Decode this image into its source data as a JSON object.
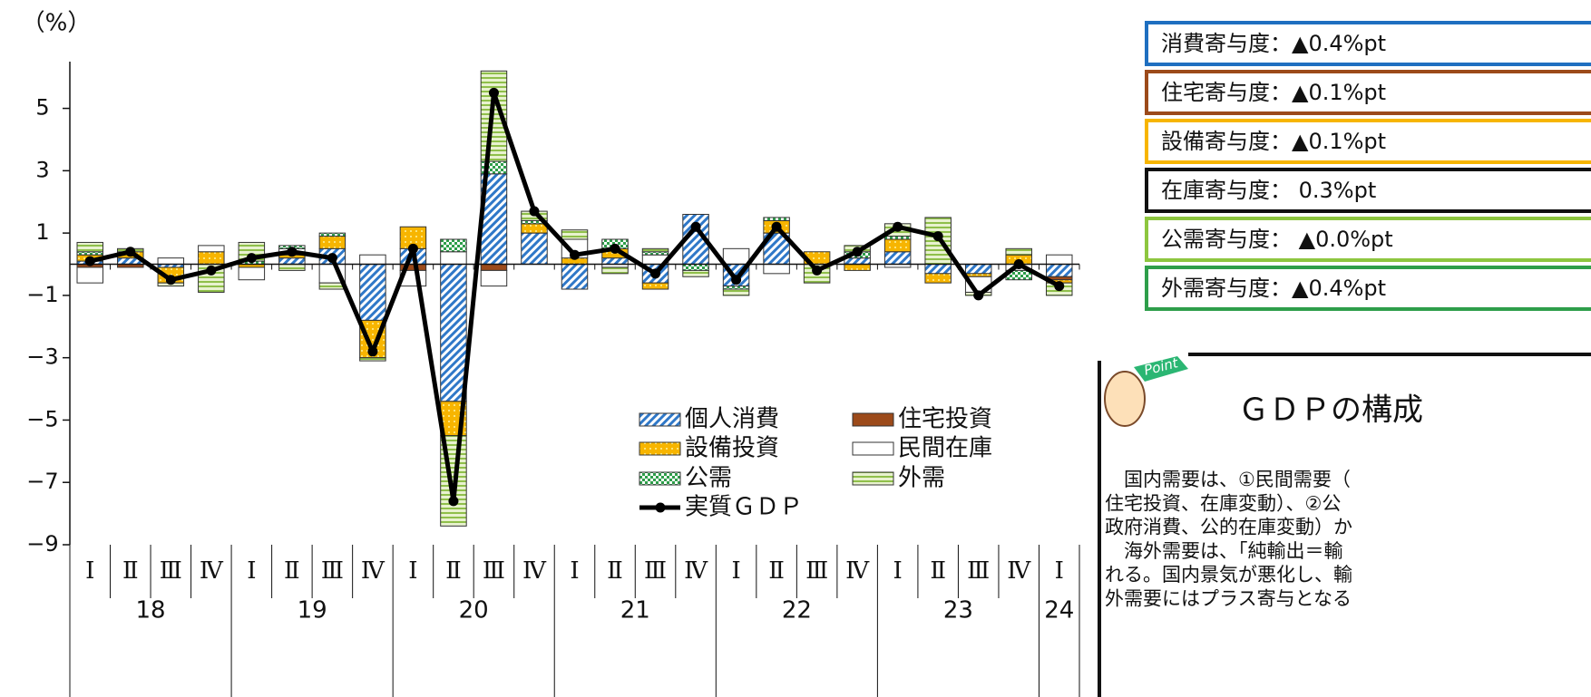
{
  "chart_data": {
    "type": "stacked-bar-line",
    "y_label": "（%）",
    "categories": [
      "Ⅰ",
      "Ⅱ",
      "Ⅲ",
      "Ⅳ",
      "Ⅰ",
      "Ⅱ",
      "Ⅲ",
      "Ⅳ",
      "Ⅰ",
      "Ⅱ",
      "Ⅲ",
      "Ⅳ",
      "Ⅰ",
      "Ⅱ",
      "Ⅲ",
      "Ⅳ",
      "Ⅰ",
      "Ⅱ",
      "Ⅲ",
      "Ⅳ",
      "Ⅰ",
      "Ⅱ",
      "Ⅲ",
      "Ⅳ",
      "Ⅰ"
    ],
    "years": [
      "18",
      "19",
      "20",
      "21",
      "22",
      "23",
      "24"
    ],
    "ylim": [
      -9,
      6.5
    ],
    "yticks": [
      {
        "value": -9,
        "label": "−9"
      },
      {
        "value": -7,
        "label": "−7"
      },
      {
        "value": -5,
        "label": "−5"
      },
      {
        "value": -3,
        "label": "−3"
      },
      {
        "value": -1,
        "label": "−1"
      },
      1,
      3,
      5
    ],
    "series": [
      {
        "name": "個人消費",
        "color": "#2f78c8",
        "pattern": "hatch",
        "values": [
          0.1,
          0.2,
          -0.1,
          0.0,
          0.0,
          0.2,
          0.5,
          -1.8,
          0.5,
          -4.4,
          2.9,
          1.0,
          -0.8,
          0.2,
          -0.6,
          1.6,
          -0.7,
          1.0,
          0.0,
          0.2,
          0.4,
          -0.3,
          -0.3,
          0.0,
          -0.4
        ]
      },
      {
        "name": "住宅投資",
        "color": "#9c4a1a",
        "pattern": "solid",
        "values": [
          -0.1,
          -0.1,
          0.0,
          0.0,
          0.0,
          0.0,
          0.0,
          0.0,
          -0.2,
          0.0,
          -0.2,
          0.0,
          0.0,
          0.0,
          0.0,
          0.0,
          0.0,
          0.0,
          0.0,
          0.0,
          0.0,
          0.0,
          0.0,
          0.0,
          -0.1
        ]
      },
      {
        "name": "設備投資",
        "color": "#f7b500",
        "pattern": "dots",
        "values": [
          0.2,
          0.2,
          -0.5,
          0.4,
          -0.1,
          0.1,
          0.4,
          -1.2,
          0.7,
          -1.1,
          0.0,
          0.3,
          0.2,
          0.3,
          -0.2,
          0.0,
          0.0,
          0.4,
          0.4,
          -0.2,
          0.4,
          -0.3,
          -0.1,
          0.3,
          -0.1
        ]
      },
      {
        "name": "民間在庫",
        "color": "#ffffff",
        "pattern": "plain",
        "values": [
          -0.5,
          0.0,
          0.2,
          0.2,
          -0.4,
          0.2,
          -0.6,
          0.3,
          -0.5,
          0.4,
          -0.5,
          0.0,
          0.6,
          -0.1,
          0.3,
          0.0,
          0.5,
          -0.3,
          0.0,
          0.0,
          -0.1,
          0.0,
          -0.5,
          -0.2,
          0.3
        ]
      },
      {
        "name": "公需",
        "color": "#2e9e4a",
        "pattern": "checker",
        "values": [
          0.1,
          0.0,
          0.0,
          0.0,
          0.1,
          0.1,
          0.1,
          0.0,
          0.0,
          0.4,
          0.4,
          0.1,
          0.0,
          0.3,
          0.1,
          -0.2,
          -0.1,
          0.1,
          0.0,
          0.2,
          0.1,
          0.0,
          0.0,
          -0.3,
          0.0
        ]
      },
      {
        "name": "外需",
        "color": "#8fbf4a",
        "pattern": "stripes",
        "values": [
          0.3,
          0.1,
          -0.1,
          -0.9,
          0.6,
          -0.2,
          -0.2,
          -0.1,
          0.0,
          -2.9,
          2.9,
          0.3,
          0.3,
          -0.2,
          0.1,
          -0.2,
          -0.2,
          0.0,
          -0.6,
          0.2,
          0.4,
          1.5,
          -0.1,
          0.2,
          -0.4
        ]
      }
    ],
    "line": {
      "name": "実質ＧＤＰ",
      "color": "#000000",
      "values": [
        0.1,
        0.4,
        -0.5,
        -0.2,
        0.2,
        0.4,
        0.2,
        -2.8,
        0.5,
        -7.6,
        5.5,
        1.7,
        0.3,
        0.5,
        -0.3,
        1.2,
        -0.5,
        1.2,
        -0.2,
        0.4,
        1.2,
        0.9,
        -1.0,
        0.0,
        -0.7
      ]
    }
  },
  "contribution_boxes": [
    {
      "text": "消費寄与度：▲0.4%pt",
      "color": "#1f6fc0"
    },
    {
      "text": "住宅寄与度：▲0.1%pt",
      "color": "#9c4a1a"
    },
    {
      "text": "設備寄与度：▲0.1%pt",
      "color": "#f7b500"
    },
    {
      "text": "在庫寄与度：  0.3%pt",
      "color": "#111111"
    },
    {
      "text": "公需寄与度：  ▲0.0%pt",
      "color": "#8dc63f"
    },
    {
      "text": "外需寄与度：▲0.4%pt",
      "color": "#2e9e4a"
    }
  ],
  "point_box": {
    "badge": "Point",
    "title": "ＧＤＰの構成",
    "lines": [
      "　国内需要は、①民間需要（",
      "住宅投資、在庫変動）、②公",
      "政府消費、公的在庫変動）か",
      "　海外需要は、「純輸出＝輸",
      "れる。国内景気が悪化し、輸",
      "外需要にはプラス寄与となる"
    ]
  }
}
